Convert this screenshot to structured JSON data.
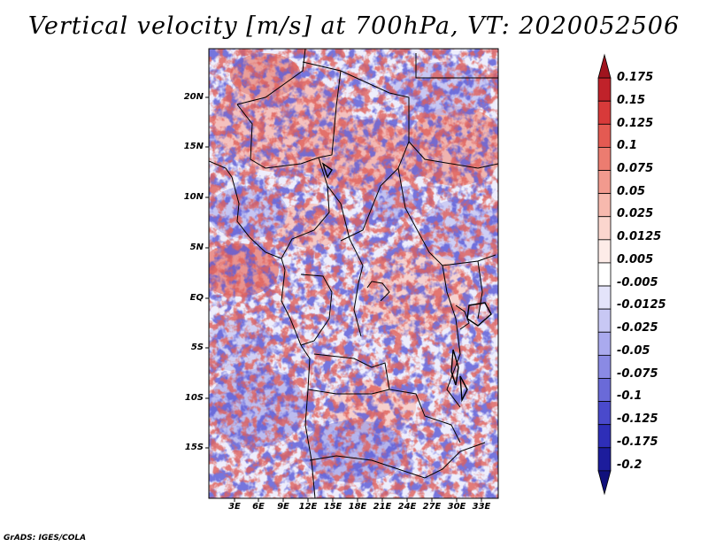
{
  "title": "Vertical velocity [m/s] at 700hPa, VT: 2020052506",
  "credit": "GrADS: IGES/COLA",
  "y_axis_labels": [
    "20N",
    "15N",
    "10N",
    "5N",
    "EQ",
    "5S",
    "10S",
    "15S"
  ],
  "x_axis_labels": [
    "3E",
    "6E",
    "9E",
    "12E",
    "15E",
    "18E",
    "21E",
    "24E",
    "27E",
    "30E",
    "33E"
  ],
  "colorbar": {
    "levels": [
      "0.175",
      "0.15",
      "0.125",
      "0.1",
      "0.075",
      "0.05",
      "0.025",
      "0.0125",
      "0.005",
      "-0.005",
      "-0.0125",
      "-0.025",
      "-0.05",
      "-0.075",
      "-0.1",
      "-0.125",
      "-0.175",
      "-0.2"
    ],
    "colors": [
      "#a0141e",
      "#c0222a",
      "#d83a3a",
      "#e45a52",
      "#ec7c70",
      "#f29a8e",
      "#f7b9ae",
      "#fbd6ce",
      "#fdece8",
      "#ffffff",
      "#e4e4fa",
      "#c8c8f4",
      "#aaaaee",
      "#8a8ae4",
      "#6a6ad8",
      "#4a4acc",
      "#2e2eb8",
      "#1c1c9c",
      "#10107c"
    ]
  },
  "colors": {
    "positive_accent": "#d83a3a",
    "negative_accent": "#4a4acc",
    "border": "#000000"
  }
}
